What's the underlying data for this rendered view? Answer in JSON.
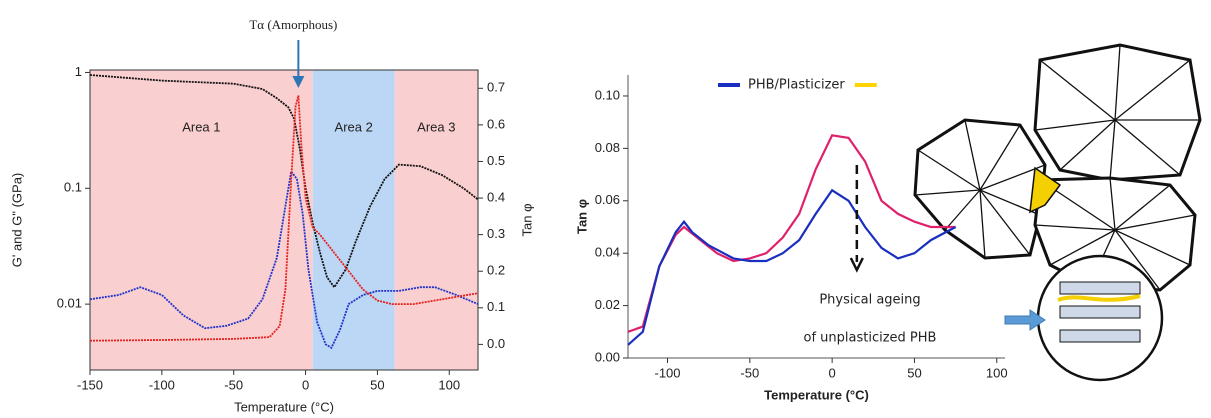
{
  "chart_data": [
    {
      "type": "line",
      "xlabel": "Temperature (°C)",
      "ylabel": "G' and G\" (GPa)",
      "y2label": "Tan φ",
      "xlim": [
        -150,
        120
      ],
      "xticks": [
        -150,
        -100,
        -50,
        0,
        50,
        100
      ],
      "ylim": [
        0.0027,
        1.05
      ],
      "ylog": true,
      "yticks": [
        0.01,
        0.1,
        1
      ],
      "y2lim": [
        -0.07,
        0.75
      ],
      "y2ticks": [
        {
          "value": 0,
          "label": "0.0"
        },
        0.1,
        0.2,
        0.3,
        0.4,
        0.5,
        0.6,
        0.7
      ],
      "areas": [
        {
          "label": "Area 1",
          "from": -150,
          "to": 5,
          "color": "#f9cfd0"
        },
        {
          "label": "Area 2",
          "from": 5,
          "to": 62,
          "color": "#bcd7f5"
        },
        {
          "label": "Area 3",
          "from": 62,
          "to": 120,
          "color": "#f9cfd0"
        }
      ],
      "annotation": {
        "text": "Tα (Amorphous)",
        "x": -5
      },
      "series": [
        {
          "color": "#111111",
          "x": [
            -150,
            -100,
            -50,
            -30,
            -20,
            -12,
            -8,
            -4,
            0,
            5,
            10,
            15,
            20,
            28,
            35,
            45,
            55,
            65,
            80,
            95,
            110,
            120
          ],
          "values": [
            0.95,
            0.85,
            0.8,
            0.72,
            0.6,
            0.5,
            0.4,
            0.22,
            0.1,
            0.05,
            0.028,
            0.017,
            0.014,
            0.02,
            0.035,
            0.07,
            0.12,
            0.16,
            0.155,
            0.13,
            0.1,
            0.08
          ]
        },
        {
          "color": "#2233cc",
          "x": [
            -150,
            -130,
            -115,
            -100,
            -85,
            -70,
            -55,
            -40,
            -30,
            -20,
            -14,
            -10,
            -6,
            -2,
            2,
            8,
            14,
            18,
            24,
            30,
            40,
            50,
            65,
            80,
            90,
            105,
            120
          ],
          "values": [
            0.011,
            0.012,
            0.014,
            0.012,
            0.008,
            0.0062,
            0.0065,
            0.0075,
            0.011,
            0.025,
            0.07,
            0.14,
            0.12,
            0.06,
            0.02,
            0.007,
            0.0045,
            0.0042,
            0.006,
            0.01,
            0.012,
            0.013,
            0.013,
            0.014,
            0.014,
            0.012,
            0.01
          ]
        },
        {
          "color": "#e8201c",
          "axis": "y2",
          "x": [
            -150,
            -100,
            -50,
            -25,
            -18,
            -14,
            -10,
            -7,
            -5,
            -3,
            0,
            5,
            10,
            20,
            30,
            40,
            50,
            60,
            75,
            90,
            105,
            120
          ],
          "values": [
            0.01,
            0.012,
            0.015,
            0.02,
            0.05,
            0.15,
            0.45,
            0.65,
            0.68,
            0.55,
            0.4,
            0.32,
            0.3,
            0.25,
            0.2,
            0.15,
            0.12,
            0.11,
            0.11,
            0.12,
            0.13,
            0.14
          ]
        }
      ]
    },
    {
      "type": "line",
      "xlabel": "Temperature (°C)",
      "ylabel": "Tan φ",
      "xlim": [
        -124,
        105
      ],
      "xticks": [
        -100,
        -50,
        0,
        50,
        100
      ],
      "ylim": [
        0,
        0.108
      ],
      "yticks": [
        {
          "value": 0,
          "label": "0.00"
        },
        {
          "value": 0.02,
          "label": "0.02"
        },
        {
          "value": 0.04,
          "label": "0.04"
        },
        {
          "value": 0.06,
          "label": "0.06"
        },
        {
          "value": 0.08,
          "label": "0.08"
        },
        {
          "value": 0.1,
          "label": "0.10"
        }
      ],
      "annotation": {
        "text": [
          "Physical ageing",
          "of unplasticized PHB"
        ],
        "x": 15
      },
      "legend": "top",
      "series": [
        {
          "color": "#e0206a",
          "x": [
            -124,
            -115,
            -105,
            -95,
            -90,
            -80,
            -70,
            -60,
            -50,
            -40,
            -30,
            -20,
            -10,
            0,
            10,
            20,
            30,
            40,
            50,
            60,
            75
          ],
          "values": [
            0.01,
            0.012,
            0.035,
            0.047,
            0.05,
            0.045,
            0.04,
            0.037,
            0.038,
            0.04,
            0.046,
            0.055,
            0.072,
            0.085,
            0.084,
            0.075,
            0.06,
            0.055,
            0.052,
            0.05,
            0.05
          ]
        },
        {
          "name": "PHB/Plasticizer",
          "color": "#1a2fc0",
          "x": [
            -124,
            -115,
            -105,
            -95,
            -90,
            -85,
            -75,
            -60,
            -50,
            -40,
            -30,
            -20,
            -10,
            0,
            10,
            20,
            30,
            40,
            50,
            60,
            75
          ],
          "values": [
            0.005,
            0.01,
            0.035,
            0.048,
            0.052,
            0.048,
            0.043,
            0.038,
            0.037,
            0.037,
            0.04,
            0.045,
            0.055,
            0.064,
            0.06,
            0.05,
            0.042,
            0.038,
            0.04,
            0.045,
            0.05
          ]
        }
      ]
    }
  ]
}
